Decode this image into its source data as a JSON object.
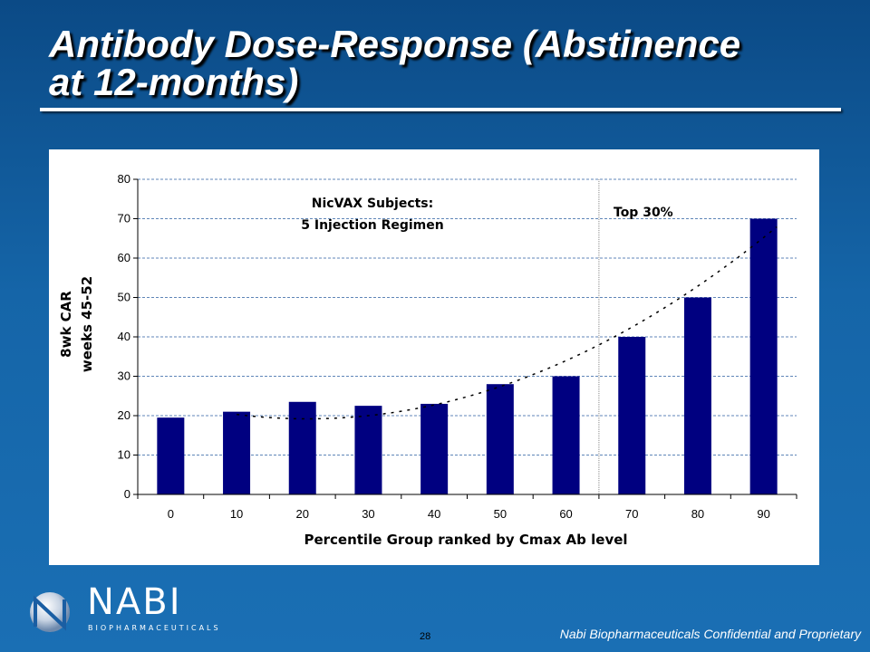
{
  "slide": {
    "title_line1": "Antibody Dose-Response (Abstinence",
    "title_line2": "at 12-months)",
    "page_number": "28",
    "footer": "Nabi Biopharmaceuticals Confidential and Proprietary",
    "logo_name": "NABI",
    "logo_tagline": "BIOPHARMACEUTICALS",
    "logo_icon": "nabi-sphere-icon"
  },
  "colors": {
    "bar": "#000080",
    "grid": "#5f86b8",
    "trend": "#000000"
  },
  "chart_data": {
    "type": "bar",
    "categories": [
      "0",
      "10",
      "20",
      "30",
      "40",
      "50",
      "60",
      "70",
      "80",
      "90"
    ],
    "values": [
      19.5,
      21,
      23.5,
      22.5,
      23,
      28,
      30,
      40,
      50,
      70
    ],
    "xlabel": "Percentile Group ranked by Cmax Ab level",
    "ylabel_line1": "8wk CAR",
    "ylabel_line2": "weeks 45-52",
    "ylim": [
      0,
      80
    ],
    "yticks": [
      0,
      10,
      20,
      30,
      40,
      50,
      60,
      70,
      80
    ],
    "grid": true,
    "trendline": "dashed",
    "annotations": {
      "group_line1": "NicVAX Subjects:",
      "group_line2": "5 Injection Regimen",
      "top": "Top 30%"
    },
    "divider_between": [
      "60",
      "70"
    ]
  }
}
